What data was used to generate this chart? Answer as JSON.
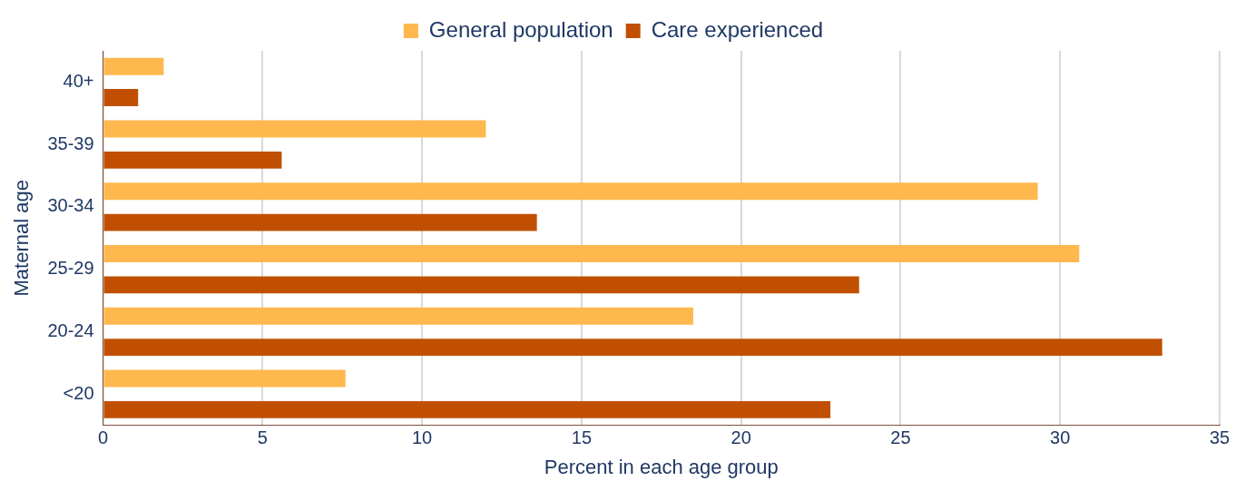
{
  "chart_data": {
    "type": "bar",
    "orientation": "horizontal",
    "xlabel": "Percent in each age group",
    "ylabel": "Maternal age",
    "categories": [
      "40+",
      "35-39",
      "30-34",
      "25-29",
      "20-24",
      "<20"
    ],
    "series": [
      {
        "name": "General population",
        "color": "#ffb84d",
        "values": [
          1.9,
          12.0,
          29.3,
          30.6,
          18.5,
          7.6
        ]
      },
      {
        "name": "Care experienced",
        "color": "#c05000",
        "values": [
          1.1,
          5.6,
          13.6,
          23.7,
          33.2,
          22.8
        ]
      }
    ],
    "xlim": [
      0,
      35
    ],
    "xticks": [
      0,
      5,
      10,
      15,
      20,
      25,
      30,
      35
    ],
    "grid": "x",
    "legend": "top"
  }
}
